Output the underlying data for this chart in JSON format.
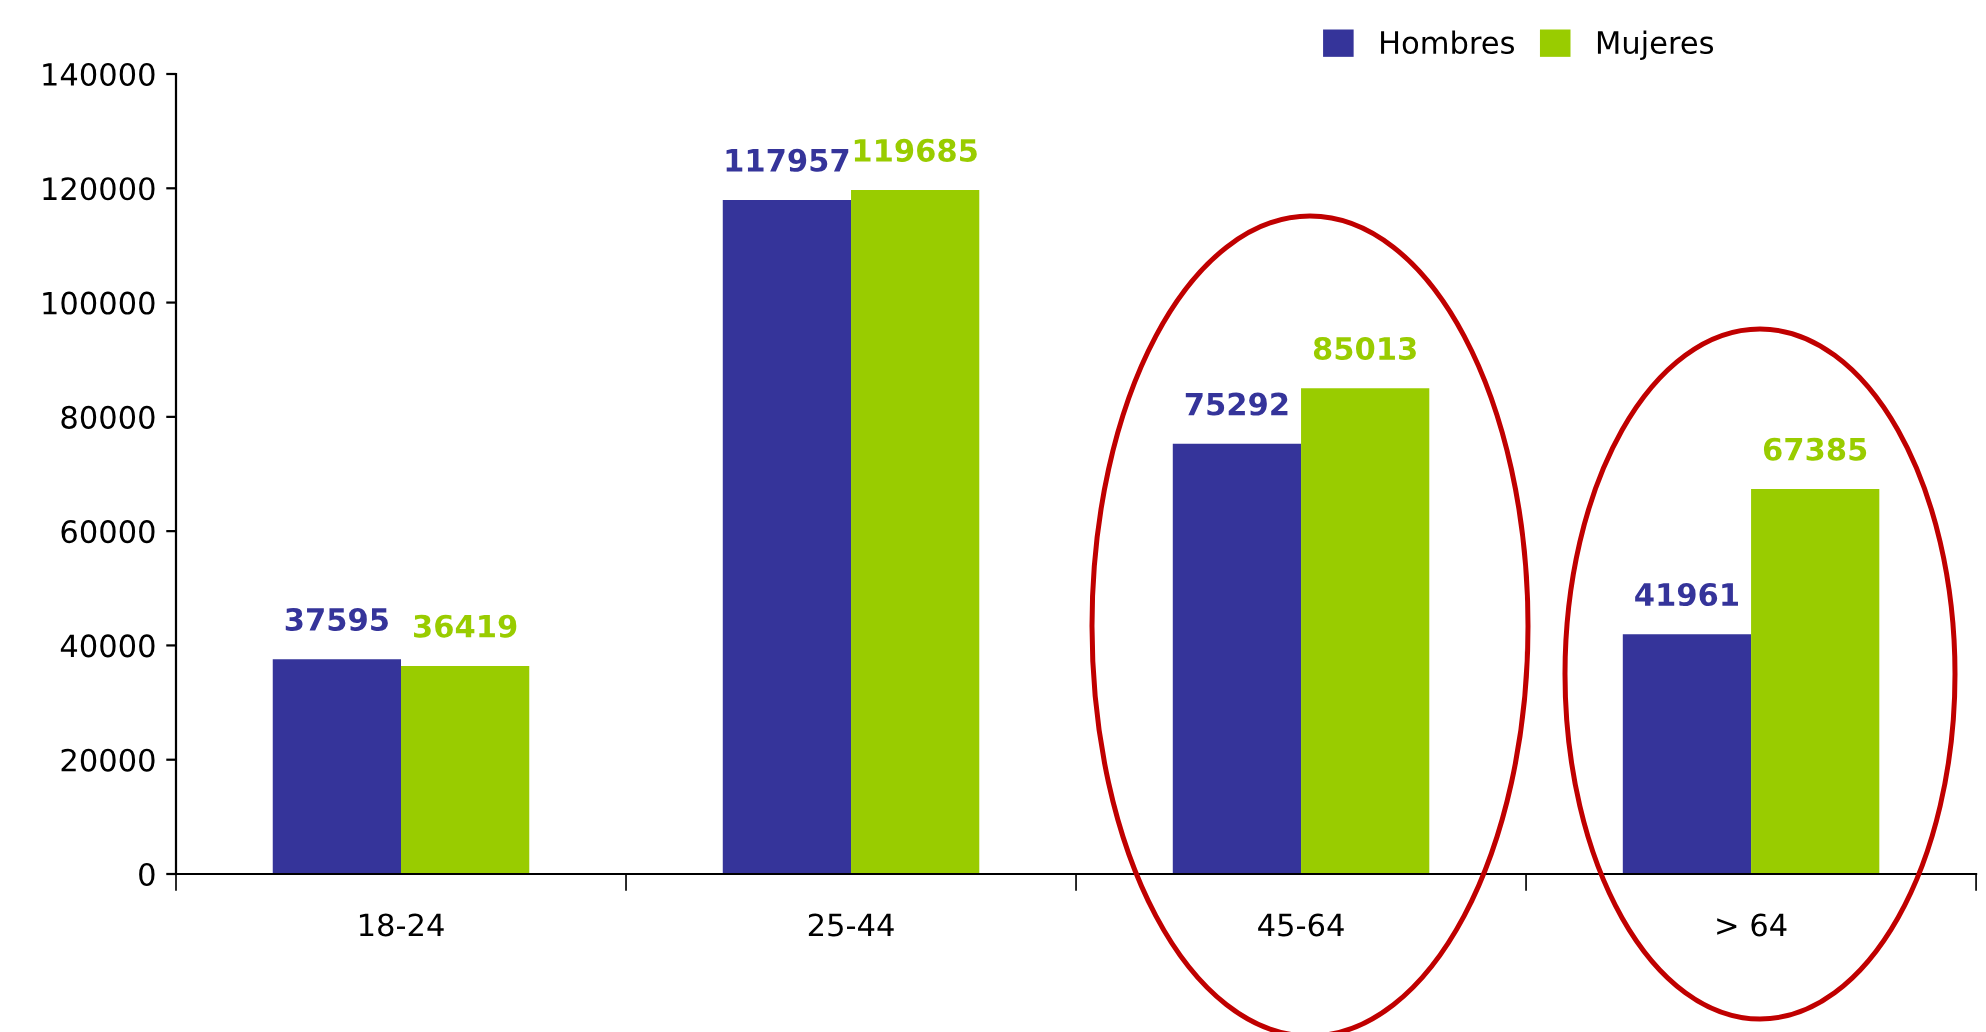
{
  "chart_data": {
    "type": "bar",
    "categories": [
      "18-24",
      "25-44",
      "45-64",
      "> 64"
    ],
    "series": [
      {
        "name": "Hombres",
        "color": "#35349a",
        "values": [
          37595,
          117957,
          75292,
          41961
        ]
      },
      {
        "name": "Mujeres",
        "color": "#99cc00",
        "values": [
          36419,
          119685,
          85013,
          67385
        ]
      }
    ],
    "ylim": [
      0,
      140000
    ],
    "yticks": [
      0,
      20000,
      40000,
      60000,
      80000,
      100000,
      120000,
      140000
    ],
    "data_labels": true,
    "legend": "top right",
    "grid": false
  }
}
